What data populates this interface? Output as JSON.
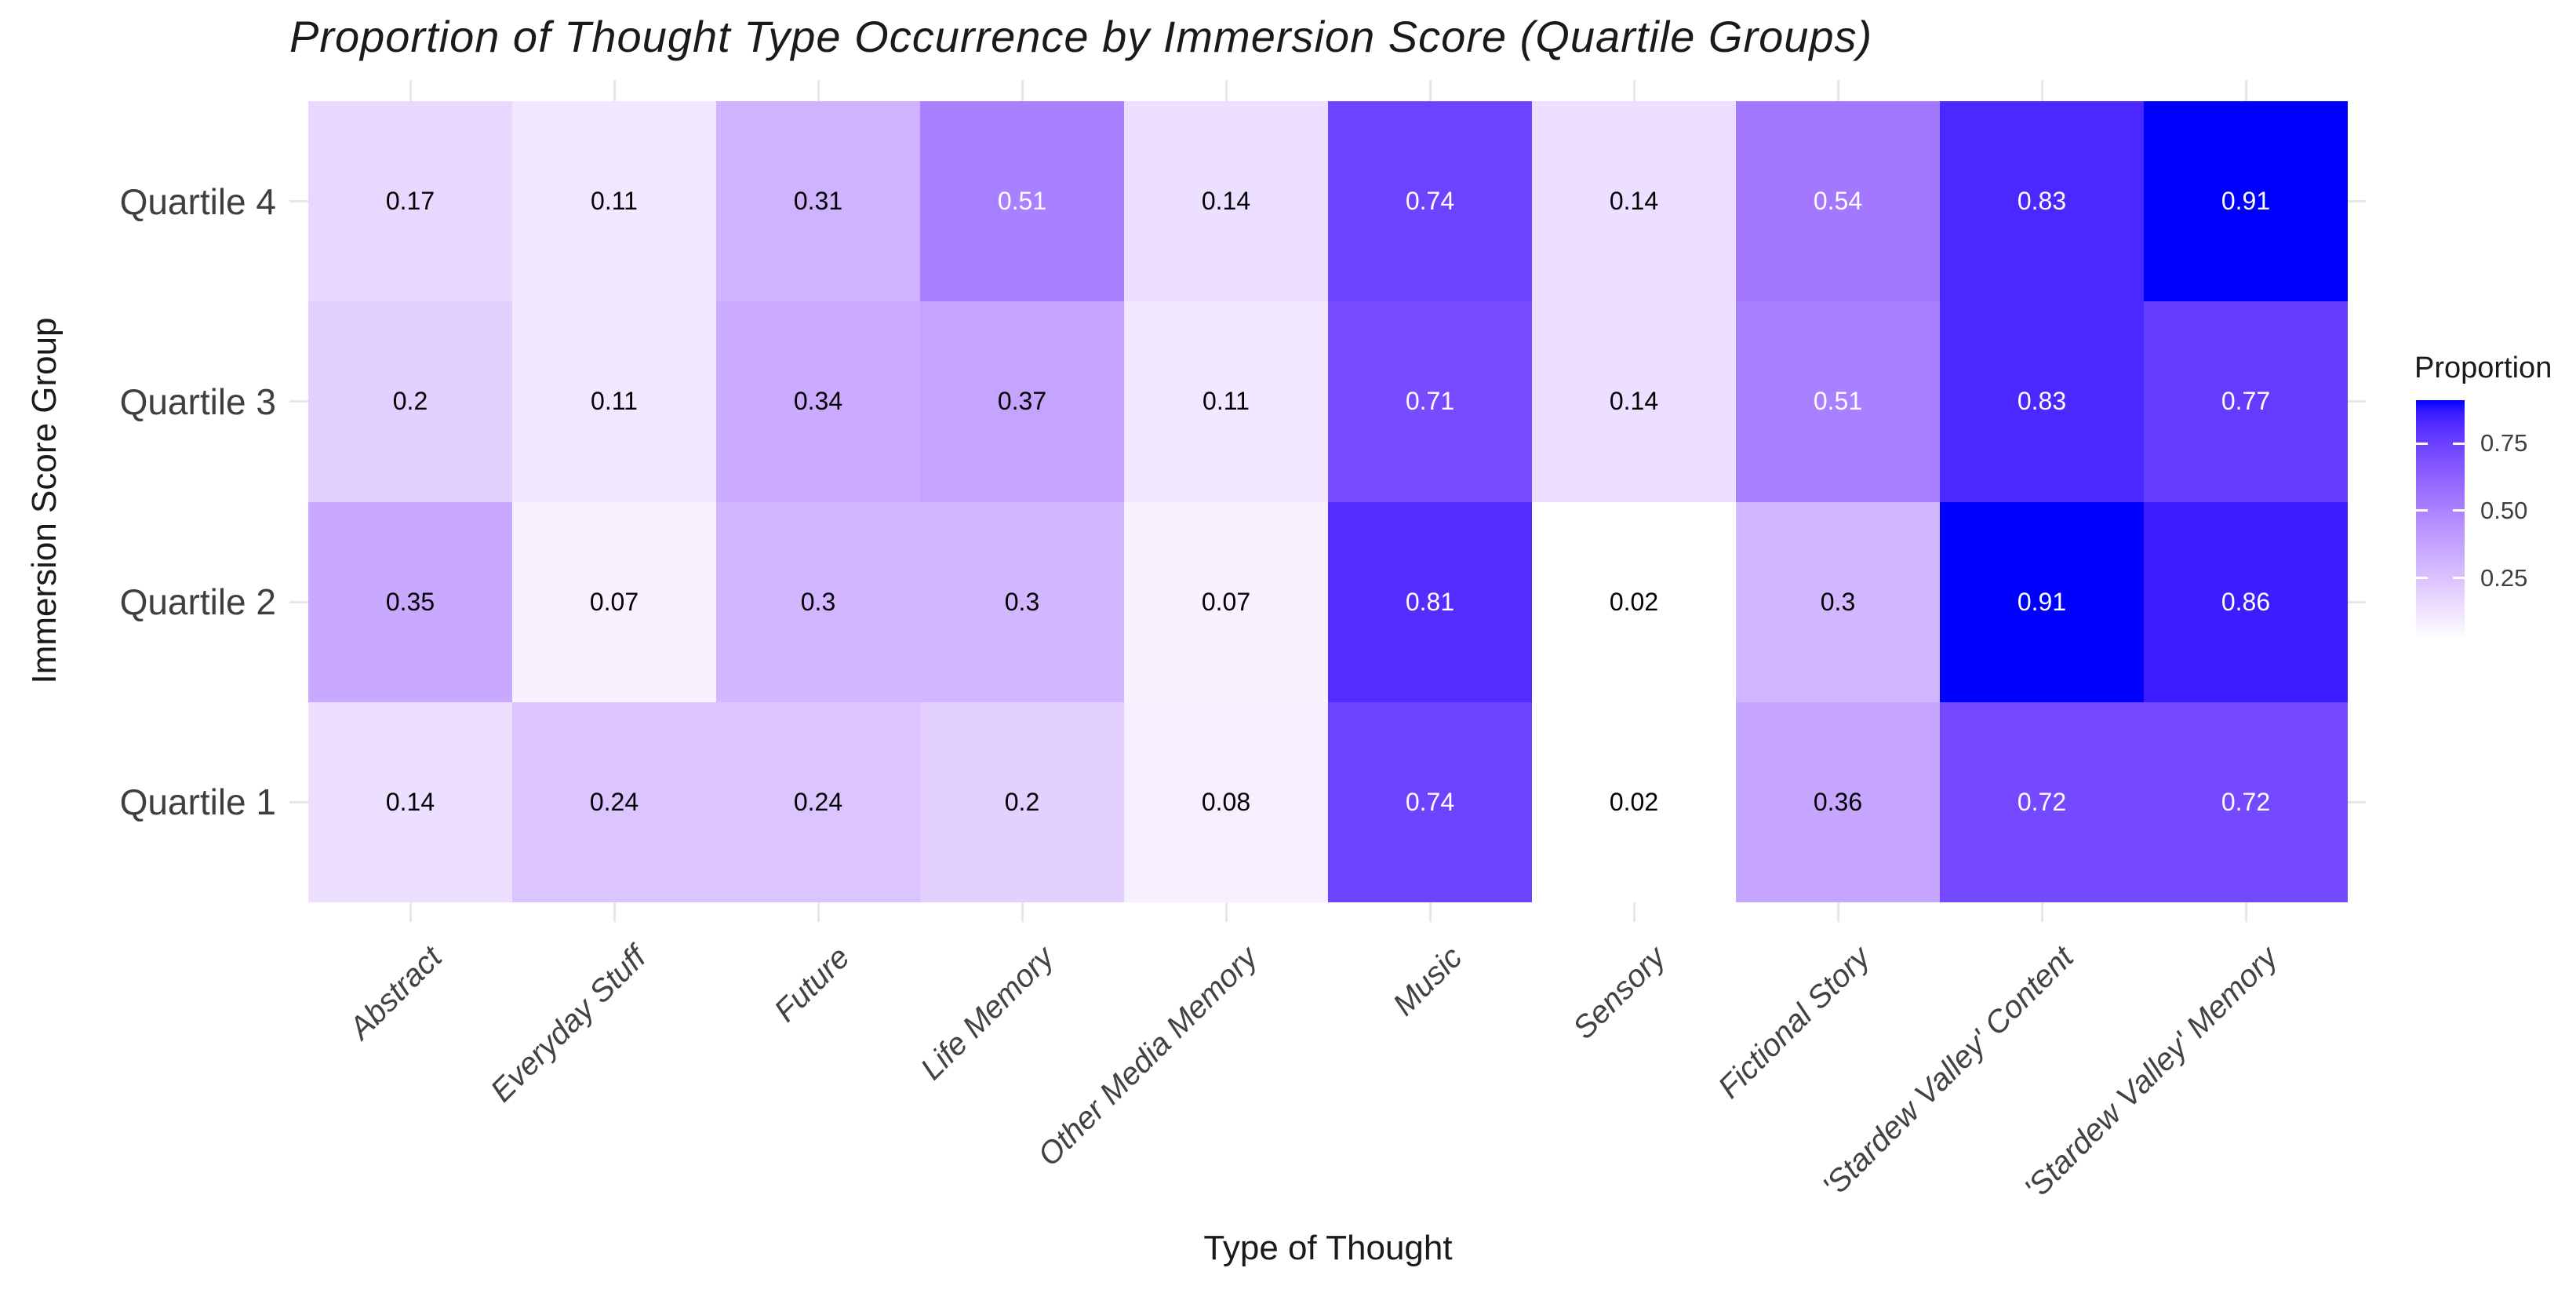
{
  "chart_data": {
    "type": "heatmap",
    "title": "Proportion of Thought Type Occurrence by Immersion Score (Quartile Groups)",
    "xlabel": "Type of Thought",
    "ylabel": "Immersion Score Group",
    "columns": [
      "Abstract",
      "Everyday Stuff",
      "Future",
      "Life Memory",
      "Other Media Memory",
      "Music",
      "Sensory",
      "Fictional Story",
      "'Stardew Valley' Content",
      "'Stardew Valley' Memory"
    ],
    "rows": [
      "Quartile 4",
      "Quartile 3",
      "Quartile 2",
      "Quartile 1"
    ],
    "values": [
      [
        0.17,
        0.11,
        0.31,
        0.51,
        0.14,
        0.74,
        0.14,
        0.54,
        0.83,
        0.91
      ],
      [
        0.2,
        0.11,
        0.34,
        0.37,
        0.11,
        0.71,
        0.14,
        0.51,
        0.83,
        0.77
      ],
      [
        0.35,
        0.07,
        0.3,
        0.3,
        0.07,
        0.81,
        0.02,
        0.3,
        0.91,
        0.86
      ],
      [
        0.14,
        0.24,
        0.24,
        0.2,
        0.08,
        0.74,
        0.02,
        0.36,
        0.72,
        0.72
      ]
    ],
    "legend": {
      "title": "Proportion",
      "tick_labels": [
        "0.75",
        "0.50",
        "0.25"
      ],
      "tick_values": [
        0.75,
        0.5,
        0.25
      ]
    },
    "color_scale": {
      "low": "#FFFFFF",
      "high": "#0000FF",
      "domain": [
        0.02,
        0.91
      ],
      "space": "lab"
    },
    "value_text_colors": {
      "dark": "#000000",
      "light": "#FFFFFF",
      "light_threshold": 0.5
    },
    "grid_color": "#E7E7E7",
    "axis_text_color": "#404040",
    "title_color": "#1A1A1A",
    "grid": "stubs-at-panel-edges",
    "legend_position": "right"
  }
}
